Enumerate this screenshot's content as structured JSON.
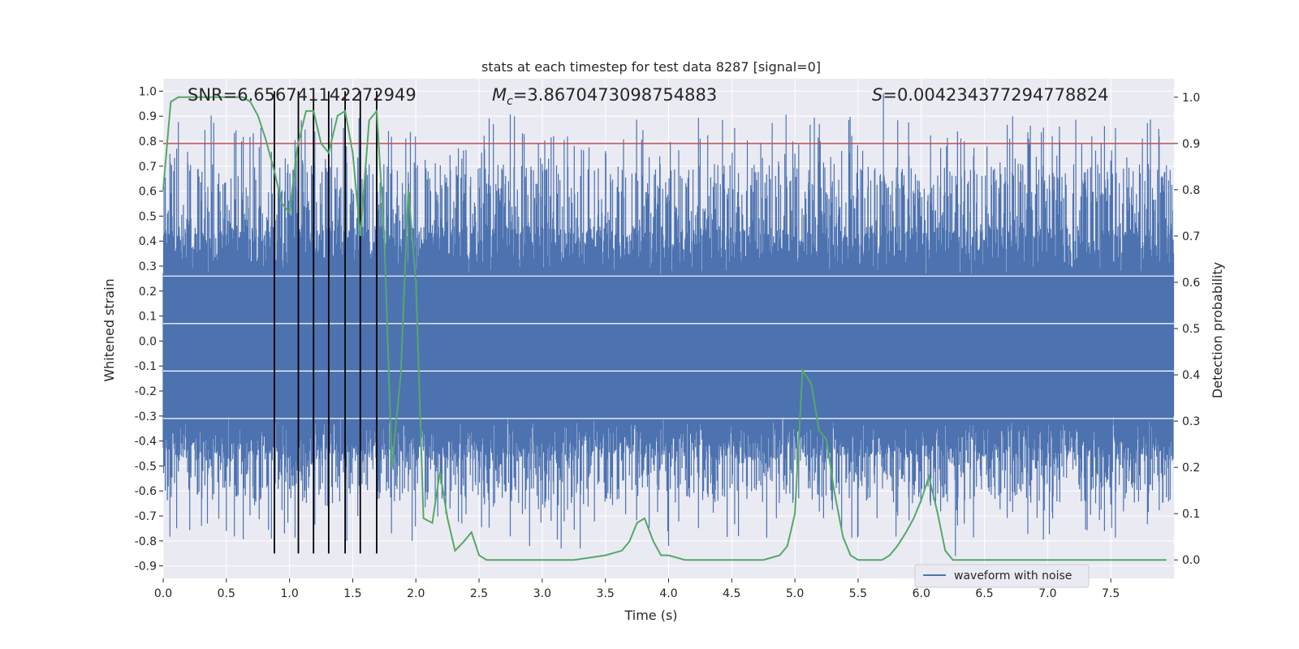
{
  "chart_data": {
    "type": "line",
    "title": "stats at each timestep for test data 8287 [signal=0]",
    "xlabel": "Time (s)",
    "ylabel": "Whitened strain",
    "y2label": "Detection probability",
    "xlim": [
      0.0,
      8.0
    ],
    "ylim": [
      -0.95,
      1.05
    ],
    "y2lim": [
      -0.04,
      1.04
    ],
    "xticks": [
      0.0,
      0.5,
      1.0,
      1.5,
      2.0,
      2.5,
      3.0,
      3.5,
      4.0,
      4.5,
      5.0,
      5.5,
      6.0,
      6.5,
      7.0,
      7.5
    ],
    "xtick_labels": [
      "0.0",
      "0.5",
      "1.0",
      "1.5",
      "2.0",
      "2.5",
      "3.0",
      "3.5",
      "4.0",
      "4.5",
      "5.0",
      "5.5",
      "6.0",
      "6.5",
      "7.0",
      "7.5"
    ],
    "yticks": [
      1.0,
      0.9,
      0.8,
      0.7,
      0.6,
      0.5,
      0.4,
      0.3,
      0.2,
      0.1,
      0.0,
      -0.1,
      -0.2,
      -0.3,
      -0.4,
      -0.5,
      -0.6,
      -0.7,
      -0.8,
      -0.9
    ],
    "ytick_labels": [
      "1.0",
      "0.9",
      "0.8",
      "0.7",
      "0.6",
      "0.5",
      "0.4",
      "0.3",
      "0.2",
      "0.1",
      "0.0",
      "-0.1",
      "-0.2",
      "-0.3",
      "-0.4",
      "-0.5",
      "-0.6",
      "-0.7",
      "-0.8",
      "-0.9"
    ],
    "y2ticks": [
      1.0,
      0.9,
      0.8,
      0.7,
      0.6,
      0.5,
      0.4,
      0.3,
      0.2,
      0.1,
      0.0
    ],
    "y2tick_labels": [
      "1.0",
      "0.9",
      "0.8",
      "0.7",
      "0.6",
      "0.5",
      "0.4",
      "0.3",
      "0.2",
      "0.1",
      "0.0"
    ],
    "grid": true,
    "annotations": {
      "snr": "SNR=6.656741142272949",
      "mc_symbol": "M",
      "mc_sub": "c",
      "mc_value": "=3.8670473098754883",
      "s_symbol": "S",
      "s_value": "=0.004234377294778824"
    },
    "legend": {
      "label": "waveform with noise",
      "position": "bottom-right"
    },
    "threshold": {
      "axis": "y2",
      "value": 0.9,
      "color": "#c44e52"
    },
    "vertical_markers": {
      "x": [
        0.88,
        1.07,
        1.19,
        1.31,
        1.44,
        1.56,
        1.69
      ],
      "ymin": -0.85,
      "ymax": 1.0,
      "color": "#000000"
    },
    "waveform": {
      "name": "waveform with noise",
      "color": "#4c72b0",
      "dense_band": [
        -0.3,
        0.26
      ],
      "spikes": [
        [
          0.33,
          0.83
        ],
        [
          0.62,
          0.8
        ],
        [
          1.45,
          0.78
        ],
        [
          1.6,
          0.62
        ],
        [
          2.32,
          0.7
        ],
        [
          2.55,
          0.69
        ],
        [
          2.78,
          0.9
        ],
        [
          3.05,
          0.73
        ],
        [
          3.5,
          0.76
        ],
        [
          4.25,
          0.81
        ],
        [
          5.0,
          0.75
        ],
        [
          5.2,
          0.8
        ],
        [
          5.7,
          0.99
        ],
        [
          6.2,
          0.78
        ],
        [
          6.7,
          0.81
        ],
        [
          6.85,
          0.81
        ],
        [
          7.35,
          0.82
        ],
        [
          7.45,
          0.86
        ],
        [
          7.75,
          0.81
        ],
        [
          0.35,
          -0.73
        ],
        [
          0.5,
          -0.76
        ],
        [
          0.96,
          -0.77
        ],
        [
          1.97,
          -0.8
        ],
        [
          2.9,
          -0.82
        ],
        [
          3.15,
          -0.83
        ],
        [
          3.3,
          -0.83
        ],
        [
          4.0,
          -0.82
        ],
        [
          5.5,
          -0.78
        ],
        [
          6.27,
          -0.86
        ],
        [
          7.45,
          -0.76
        ]
      ]
    },
    "series": [
      {
        "name": "Detection probability",
        "axis": "y2",
        "color": "#55a868",
        "x": [
          0.0,
          0.06,
          0.12,
          0.25,
          0.38,
          0.5,
          0.63,
          0.69,
          0.75,
          0.81,
          0.88,
          0.94,
          1.0,
          1.06,
          1.13,
          1.19,
          1.25,
          1.31,
          1.38,
          1.44,
          1.5,
          1.56,
          1.63,
          1.69,
          1.75,
          1.81,
          1.88,
          1.94,
          2.0,
          2.06,
          2.13,
          2.19,
          2.25,
          2.31,
          2.38,
          2.44,
          2.5,
          2.56,
          2.63,
          2.75,
          2.88,
          3.0,
          3.25,
          3.5,
          3.63,
          3.69,
          3.75,
          3.81,
          3.88,
          3.94,
          4.0,
          4.13,
          4.25,
          4.5,
          4.75,
          4.88,
          4.94,
          5.0,
          5.06,
          5.13,
          5.19,
          5.25,
          5.31,
          5.38,
          5.44,
          5.5,
          5.56,
          5.63,
          5.69,
          5.75,
          5.81,
          5.88,
          5.94,
          6.0,
          6.06,
          6.13,
          6.19,
          6.25,
          6.38,
          6.5,
          6.63,
          6.75,
          7.0,
          7.25,
          7.5,
          7.75,
          7.94
        ],
        "y": [
          0.8,
          0.99,
          1.0,
          1.0,
          1.0,
          1.0,
          1.0,
          0.99,
          0.96,
          0.91,
          0.84,
          0.77,
          0.75,
          0.89,
          0.97,
          0.97,
          0.9,
          0.88,
          0.96,
          0.97,
          0.88,
          0.7,
          0.95,
          0.97,
          0.7,
          0.2,
          0.4,
          0.8,
          0.6,
          0.09,
          0.08,
          0.19,
          0.09,
          0.02,
          0.04,
          0.06,
          0.01,
          0.0,
          0.0,
          0.0,
          0.0,
          0.0,
          0.0,
          0.01,
          0.02,
          0.04,
          0.08,
          0.09,
          0.04,
          0.01,
          0.01,
          0.0,
          0.0,
          0.0,
          0.0,
          0.01,
          0.03,
          0.1,
          0.41,
          0.38,
          0.28,
          0.26,
          0.15,
          0.05,
          0.01,
          0.0,
          0.0,
          0.0,
          0.0,
          0.01,
          0.03,
          0.06,
          0.09,
          0.13,
          0.18,
          0.1,
          0.02,
          0.0,
          0.0,
          0.0,
          0.0,
          0.0,
          0.0,
          0.0,
          0.0,
          0.0,
          0.0
        ]
      }
    ]
  }
}
